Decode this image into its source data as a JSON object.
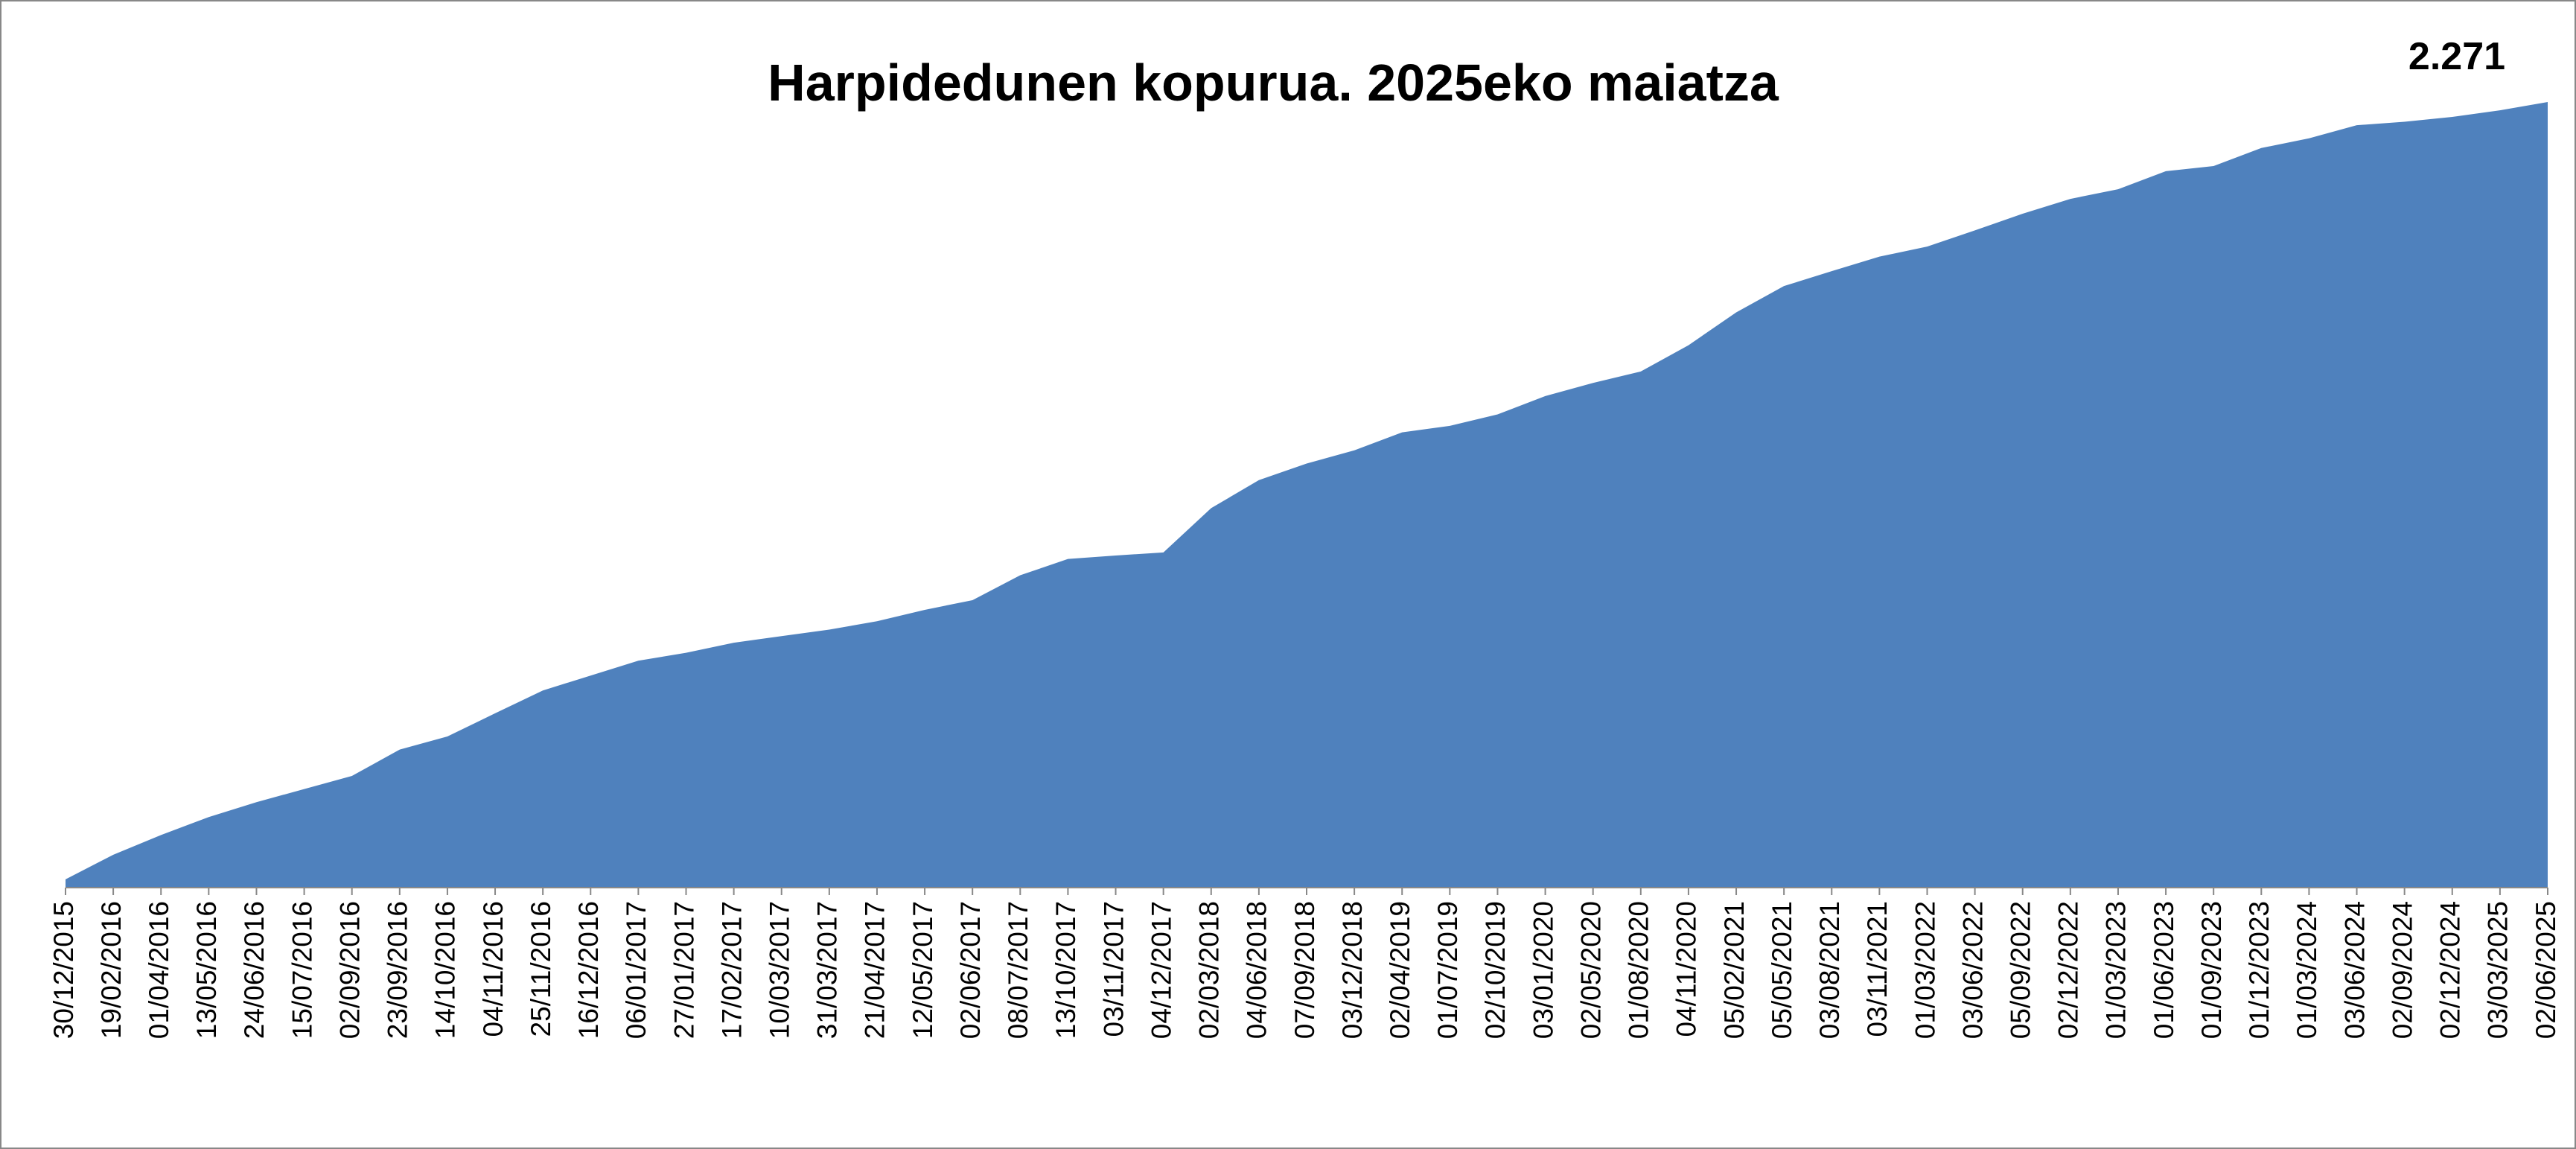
{
  "chart_data": {
    "type": "area",
    "title": "Harpidedunen kopurua. 2025eko maiatza",
    "color": "#4f81bd",
    "categories": [
      "30/12/2015",
      "19/02/2016",
      "01/04/2016",
      "13/05/2016",
      "24/06/2016",
      "15/07/2016",
      "02/09/2016",
      "23/09/2016",
      "14/10/2016",
      "04/11/2016",
      "25/11/2016",
      "16/12/2016",
      "06/01/2017",
      "27/01/2017",
      "17/02/2017",
      "10/03/2017",
      "31/03/2017",
      "21/04/2017",
      "12/05/2017",
      "02/06/2017",
      "08/07/2017",
      "13/10/2017",
      "03/11/2017",
      "04/12/2017",
      "02/03/2018",
      "04/06/2018",
      "07/09/2018",
      "03/12/2018",
      "02/04/2019",
      "01/07/2019",
      "02/10/2019",
      "03/01/2020",
      "02/05/2020",
      "01/08/2020",
      "04/11/2020",
      "05/02/2021",
      "05/05/2021",
      "03/08/2021",
      "03/11/2021",
      "01/03/2022",
      "03/06/2022",
      "05/09/2022",
      "02/12/2022",
      "01/03/2023",
      "01/06/2023",
      "01/09/2023",
      "01/12/2023",
      "01/03/2024",
      "03/06/2024",
      "02/09/2024",
      "02/12/2024",
      "03/03/2025",
      "02/06/2025"
    ],
    "values": [
      24,
      95,
      152,
      204,
      247,
      285,
      323,
      399,
      437,
      504,
      570,
      613,
      656,
      679,
      708,
      727,
      746,
      770,
      803,
      831,
      903,
      950,
      960,
      969,
      1097,
      1178,
      1226,
      1264,
      1316,
      1335,
      1368,
      1421,
      1459,
      1492,
      1568,
      1663,
      1739,
      1782,
      1824,
      1853,
      1900,
      1948,
      1991,
      2019,
      2071,
      2086,
      2138,
      2166,
      2204,
      2214,
      2228,
      2247,
      2271
    ],
    "value_labels": [
      null,
      null,
      null,
      null,
      null,
      null,
      null,
      null,
      null,
      null,
      null,
      null,
      null,
      null,
      null,
      null,
      null,
      null,
      null,
      null,
      null,
      null,
      null,
      null,
      null,
      null,
      null,
      null,
      null,
      null,
      null,
      null,
      null,
      null,
      null,
      null,
      null,
      null,
      null,
      null,
      null,
      null,
      null,
      null,
      null,
      null,
      null,
      null,
      null,
      null,
      null,
      null,
      "2.271"
    ]
  }
}
